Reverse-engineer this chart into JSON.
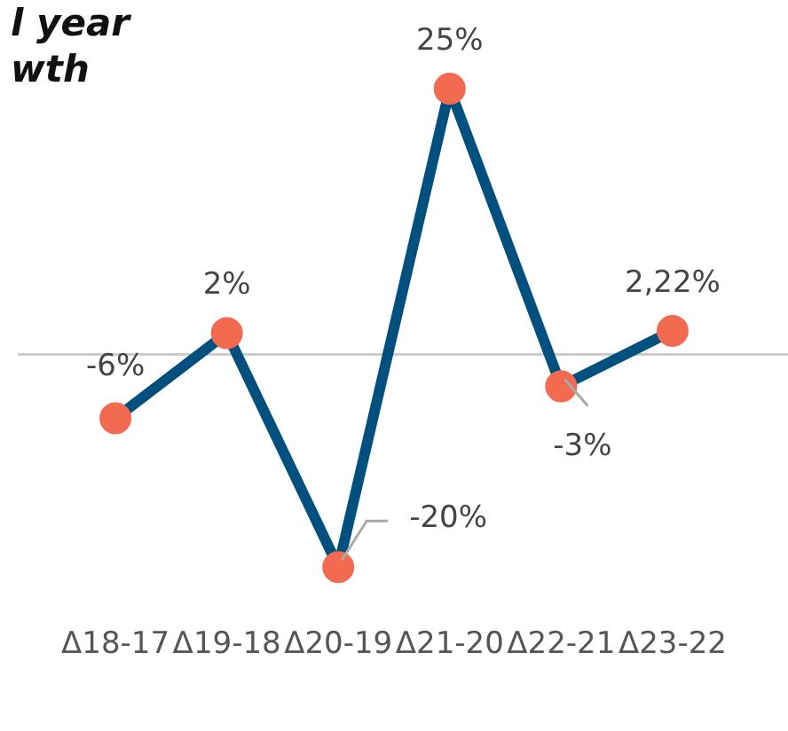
{
  "chart_data": {
    "type": "line",
    "title": "l year\nwth",
    "categories": [
      "Δ18-17",
      "Δ19-18",
      "Δ20-19",
      "Δ21-20",
      "Δ22-21",
      "Δ23-22"
    ],
    "series": [
      {
        "color": "#00507f",
        "values": [
          -6,
          2,
          -20,
          25,
          -3,
          2.22
        ],
        "value_labels": [
          "-6%",
          "2%",
          "-20%",
          "25%",
          "-3%",
          "2,22%"
        ]
      }
    ],
    "marker": "circle",
    "line_style": "solid",
    "grid": false,
    "legend": false,
    "ref_lines": [
      {
        "axis": "y",
        "value": 0,
        "color": "#cccccc"
      }
    ]
  }
}
